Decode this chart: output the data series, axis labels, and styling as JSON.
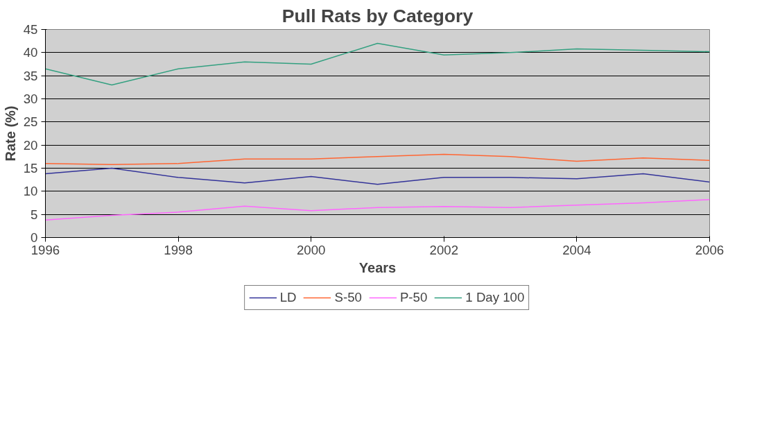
{
  "chart_data": {
    "type": "line",
    "title": "Pull Rats by Category",
    "xlabel": "Years",
    "ylabel": "Rate (%)",
    "x": [
      1996,
      1997,
      1998,
      1999,
      2000,
      2001,
      2002,
      2003,
      2004,
      2005,
      2006
    ],
    "series": [
      {
        "name": "LD",
        "color": "#333399",
        "values": [
          13.8,
          15,
          13,
          11.8,
          13.2,
          11.5,
          13,
          13,
          12.7,
          13.8,
          12
        ]
      },
      {
        "name": "S-50",
        "color": "#ff6633",
        "values": [
          16,
          15.8,
          16,
          17,
          17,
          17.5,
          18,
          17.5,
          16.5,
          17.2,
          16.7
        ]
      },
      {
        "name": "P-50",
        "color": "#ff66ff",
        "values": [
          3.8,
          4.8,
          5.5,
          6.8,
          5.8,
          6.5,
          6.7,
          6.5,
          7,
          7.5,
          8.2
        ]
      },
      {
        "name": "1 Day 100",
        "color": "#33a080",
        "values": [
          36.5,
          33,
          36.5,
          38,
          37.5,
          42,
          39.5,
          40,
          40.8,
          40.5,
          40.2
        ]
      }
    ],
    "xlim": [
      1996,
      2006
    ],
    "xticks": [
      1996,
      1998,
      2000,
      2002,
      2004,
      2006
    ],
    "ylim": [
      0,
      45
    ],
    "yticks": [
      0,
      5,
      10,
      15,
      20,
      25,
      30,
      35,
      40,
      45
    ],
    "grid": "y",
    "legend": "bottom",
    "marker": "none",
    "line_style": "solid"
  }
}
